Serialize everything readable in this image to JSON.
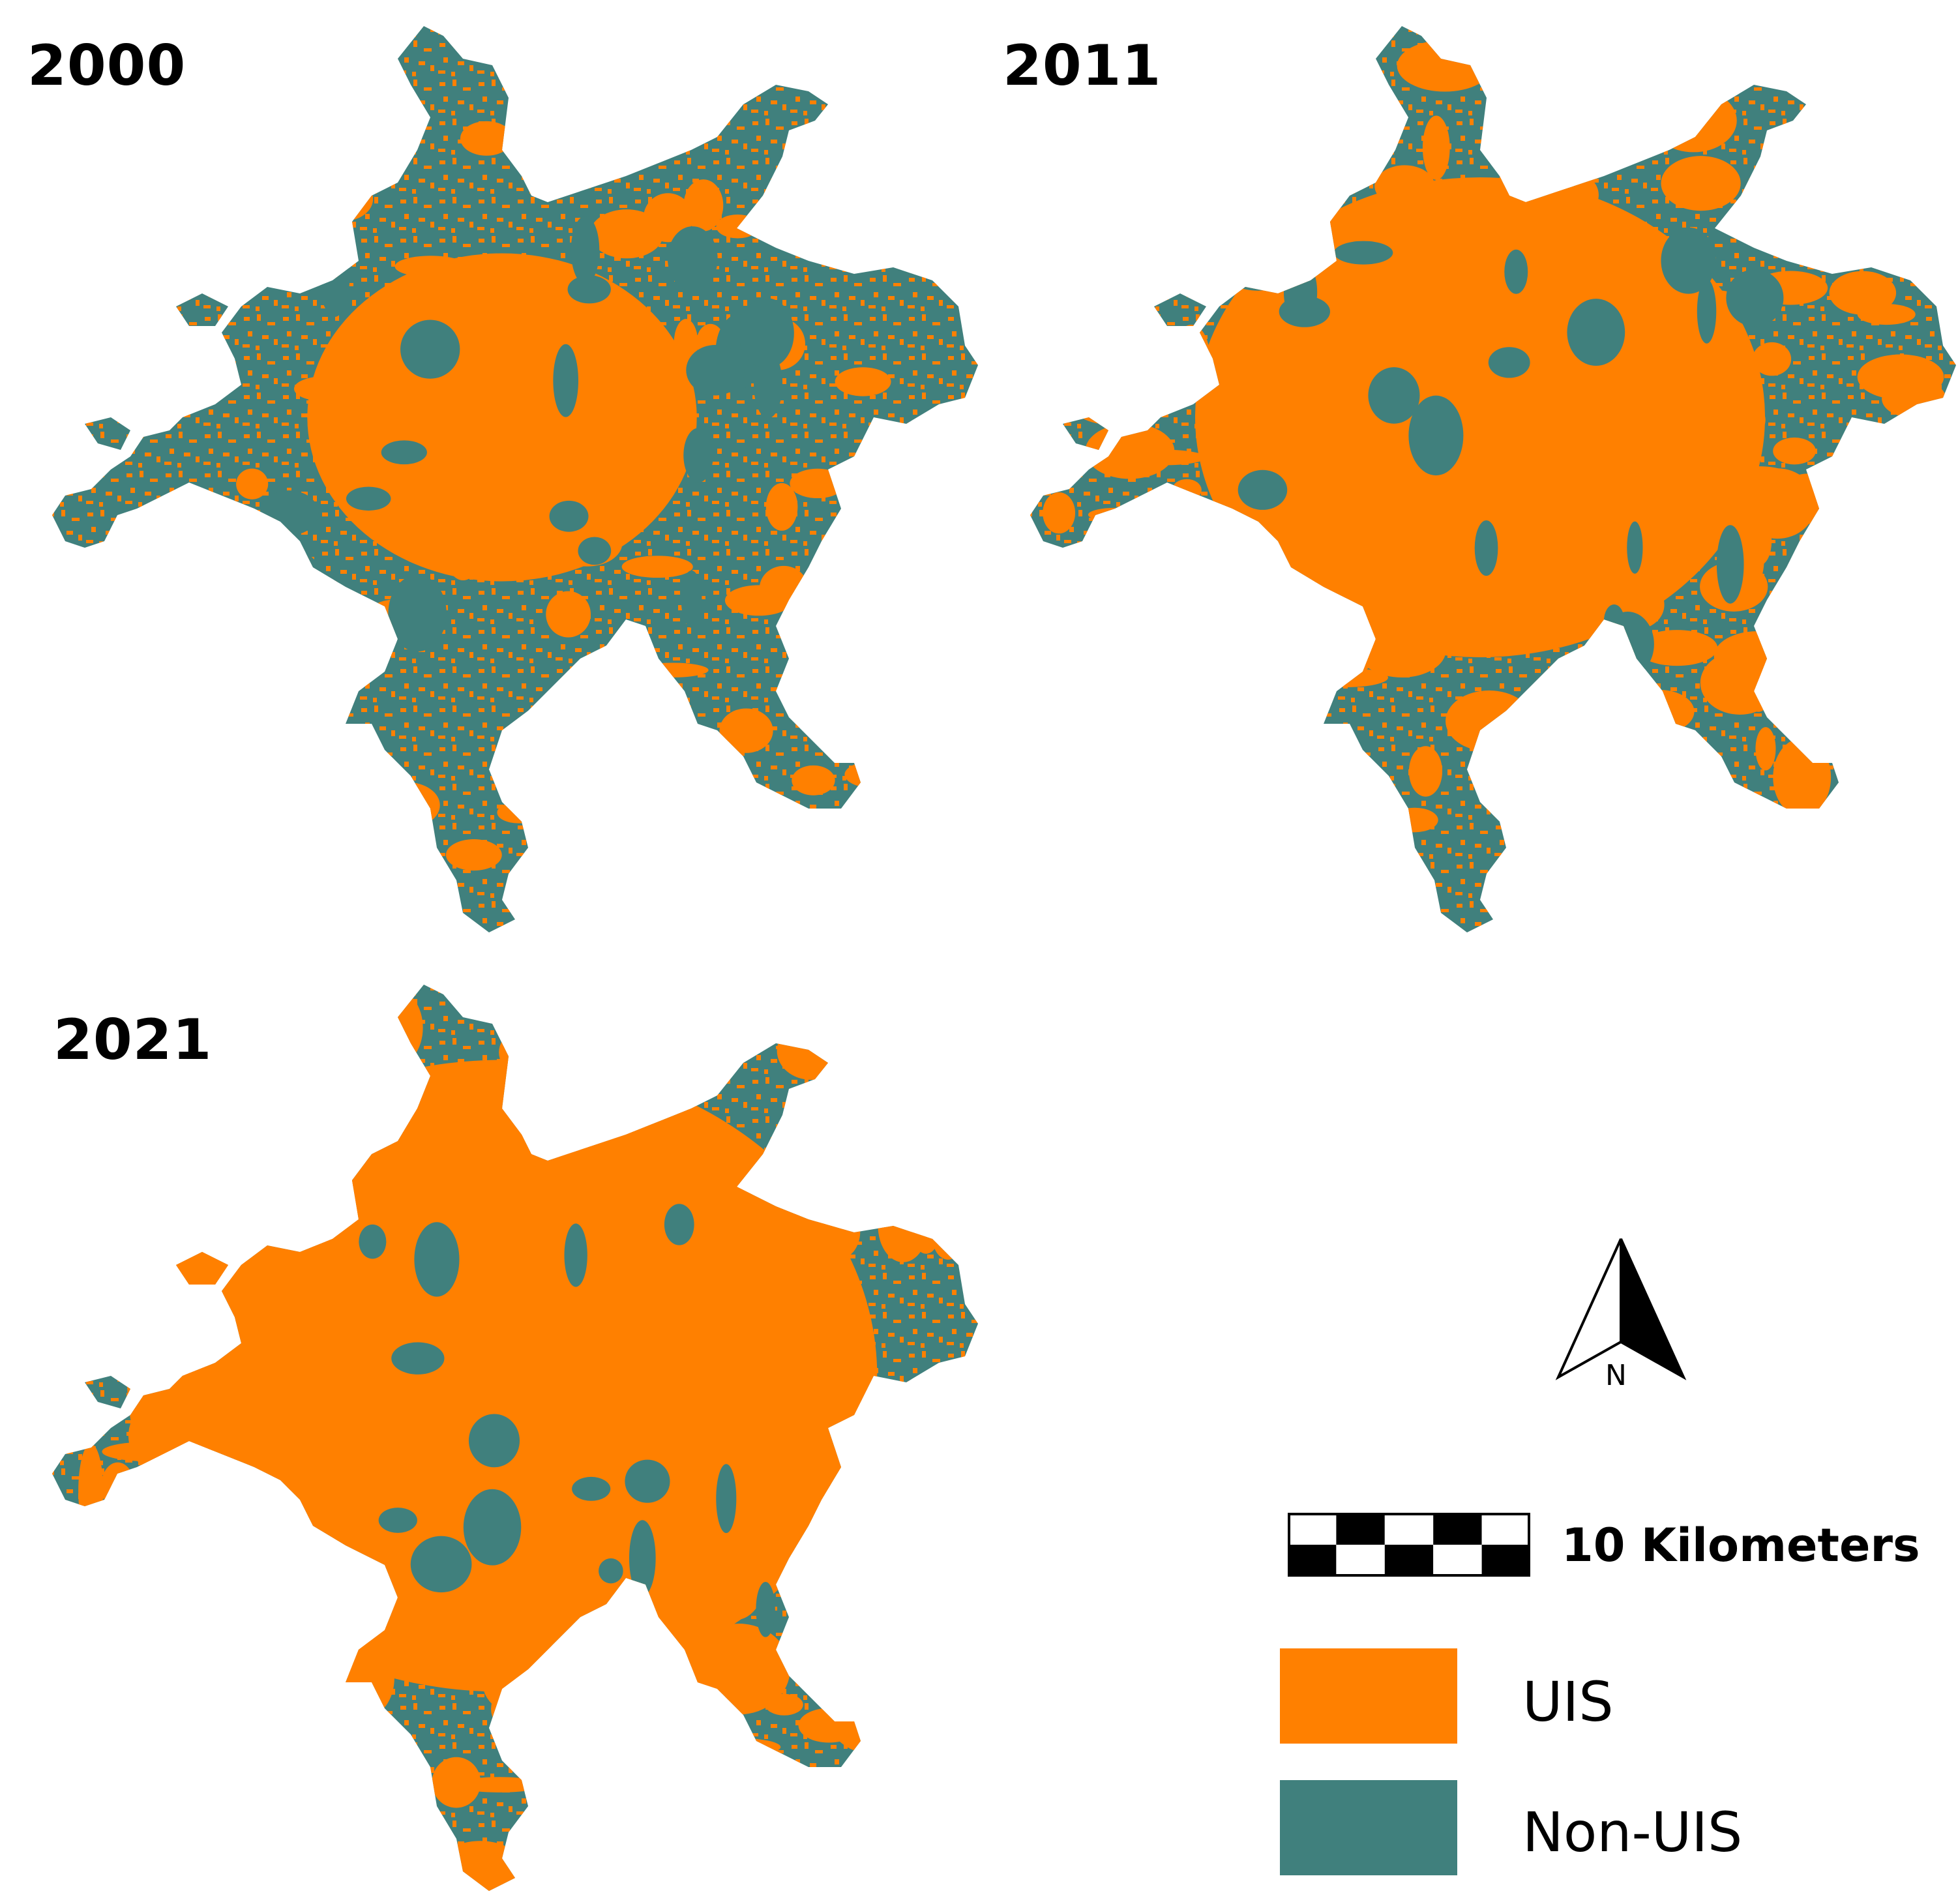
{
  "panels": [
    {
      "year": "2000",
      "uis_share": 0.22
    },
    {
      "year": "2011",
      "uis_share": 0.5
    },
    {
      "year": "2021",
      "uis_share": 0.78
    }
  ],
  "legend": {
    "uis_label": "UIS",
    "non_uis_label": "Non-UIS",
    "uis_color": "#FF8000",
    "non_uis_color": "#40807D"
  },
  "scale_bar": {
    "label": "10 Kilometers",
    "segments": 5
  },
  "north_arrow": {
    "label": "N"
  },
  "colors": {
    "uis": "#FF8000",
    "non_uis": "#40807D"
  }
}
